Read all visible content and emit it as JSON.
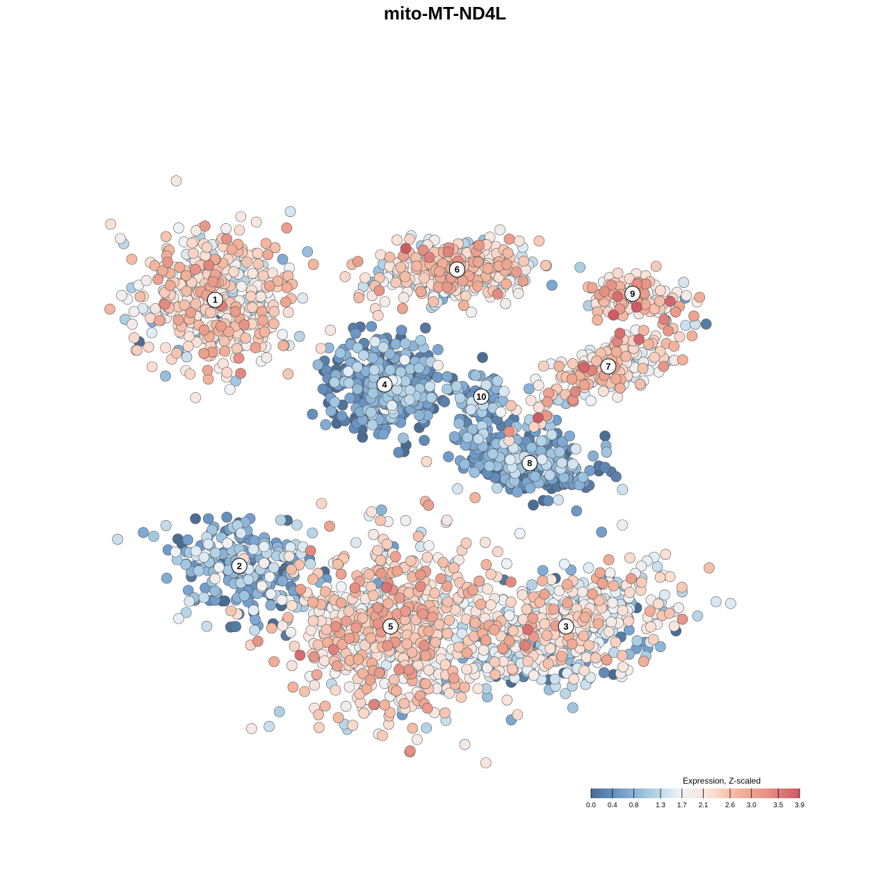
{
  "chart_data": {
    "type": "scatter",
    "title": "mito-MT-ND4L",
    "legend": {
      "title": "Expression, Z-scaled",
      "placement": "bottom-right",
      "domain": [
        0.0,
        3.9
      ],
      "ticks": [
        "0.0",
        "0.4",
        "0.8",
        "1.3",
        "1.7",
        "2.1",
        "2.6",
        "3.0",
        "3.5",
        "3.9"
      ],
      "colors": [
        "#4a6d95",
        "#6f9ccc",
        "#a9cde4",
        "#eef3f8",
        "#fbe0d4",
        "#f2b199",
        "#e48e82",
        "#cf5a64"
      ]
    },
    "clusters": [
      {
        "label": "1",
        "x": -38,
        "y": 24,
        "sx": 9,
        "sy": 8,
        "ang": -0.2,
        "mean": 2.1,
        "sd": 0.55,
        "n": 430
      },
      {
        "label": "6",
        "x": 2,
        "y": 29,
        "sx": 9,
        "sy": 3.5,
        "ang": 0.1,
        "mean": 2.0,
        "sd": 0.6,
        "n": 380
      },
      {
        "label": "4",
        "x": -10,
        "y": 10,
        "sx": 6,
        "sy": 5,
        "ang": 0,
        "mean": 0.5,
        "sd": 0.45,
        "n": 380
      },
      {
        "label": "10",
        "x": 6,
        "y": 8,
        "sx": 3,
        "sy": 3,
        "ang": 0,
        "mean": 0.6,
        "sd": 0.5,
        "n": 55
      },
      {
        "label": "9",
        "x": 31,
        "y": 25,
        "sx": 6,
        "sy": 2.5,
        "ang": -0.1,
        "mean": 2.3,
        "sd": 0.6,
        "n": 110
      },
      {
        "label": "7",
        "x": 27,
        "y": 13,
        "sx": 10,
        "sy": 3,
        "ang": 0.45,
        "mean": 2.1,
        "sd": 0.6,
        "n": 220
      },
      {
        "label": "8",
        "x": 14,
        "y": -3,
        "sx": 8,
        "sy": 3.5,
        "ang": -0.25,
        "mean": 0.5,
        "sd": 0.45,
        "n": 330
      },
      {
        "label": "2",
        "x": -34,
        "y": -20,
        "sx": 8,
        "sy": 5,
        "ang": -0.3,
        "mean": 0.7,
        "sd": 0.55,
        "n": 240
      },
      {
        "label": "3",
        "x": 20,
        "y": -30,
        "sx": 13,
        "sy": 5.5,
        "ang": 0.35,
        "mean": 1.6,
        "sd": 0.7,
        "n": 480
      },
      {
        "label": "5",
        "x": -9,
        "y": -30,
        "sx": 11,
        "sy": 11,
        "ang": 0,
        "mean": 2.2,
        "sd": 0.55,
        "n": 620
      }
    ]
  }
}
